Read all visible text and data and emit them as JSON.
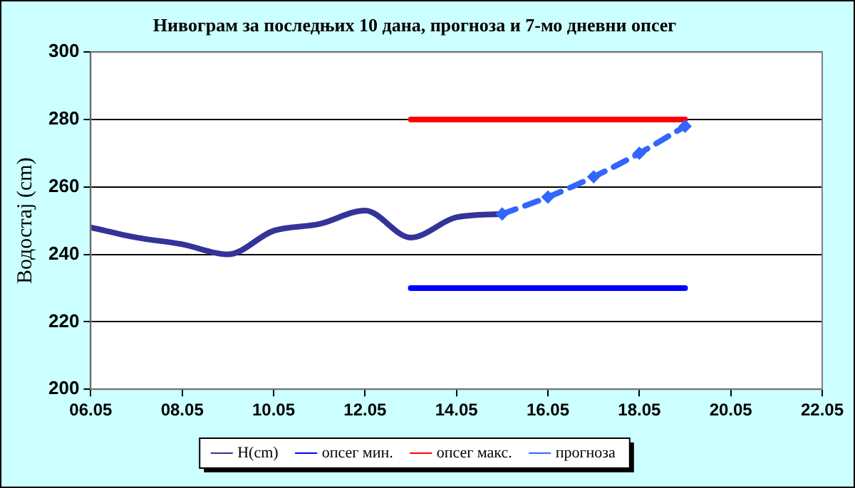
{
  "chart_data": {
    "type": "line",
    "title": "Нивограм за последњих 10 дана, прогноза и 7-мо дневни опсег",
    "ylabel": "Водостај (cm)",
    "xlim": [
      "--05-06",
      "--05-22"
    ],
    "xticks": [
      {
        "value": "--05-06",
        "label": "06.05"
      },
      {
        "value": "--05-08",
        "label": "08.05"
      },
      {
        "value": "--05-10",
        "label": "10.05"
      },
      {
        "value": "--05-12",
        "label": "12.05"
      },
      {
        "value": "--05-14",
        "label": "14.05"
      },
      {
        "value": "--05-16",
        "label": "16.05"
      },
      {
        "value": "--05-18",
        "label": "18.05"
      },
      {
        "value": "--05-20",
        "label": "20.05"
      },
      {
        "value": "--05-22",
        "label": "22.05"
      }
    ],
    "ylim": [
      200,
      300
    ],
    "yticks": [
      200,
      220,
      240,
      260,
      280,
      300
    ],
    "grid": "y",
    "legend": "bottom",
    "series": [
      {
        "name": "H(cm)",
        "color": "#333399",
        "marker": "none",
        "line_style": "solid",
        "x": [
          "--05-06",
          "--05-07",
          "--05-08",
          "--05-09",
          "--05-10",
          "--05-11",
          "--05-12",
          "--05-13",
          "--05-14",
          "--05-15"
        ],
        "values": [
          248,
          245,
          243,
          240,
          247,
          249,
          253,
          245,
          251,
          252
        ]
      },
      {
        "name": "опсег мин.",
        "color": "#0000ff",
        "marker": "none",
        "line_style": "solid",
        "x": [
          "--05-13",
          "--05-19"
        ],
        "values": [
          230,
          230
        ]
      },
      {
        "name": "опсег макс.",
        "color": "#ff0000",
        "marker": "none",
        "line_style": "solid",
        "x": [
          "--05-13",
          "--05-19"
        ],
        "values": [
          280,
          280
        ]
      },
      {
        "name": "прогноза",
        "color": "#3366ff",
        "marker": "diamond",
        "line_style": "dashed",
        "x": [
          "--05-15",
          "--05-16",
          "--05-17",
          "--05-18",
          "--05-19"
        ],
        "values": [
          252,
          257,
          263,
          270,
          278
        ]
      }
    ]
  }
}
